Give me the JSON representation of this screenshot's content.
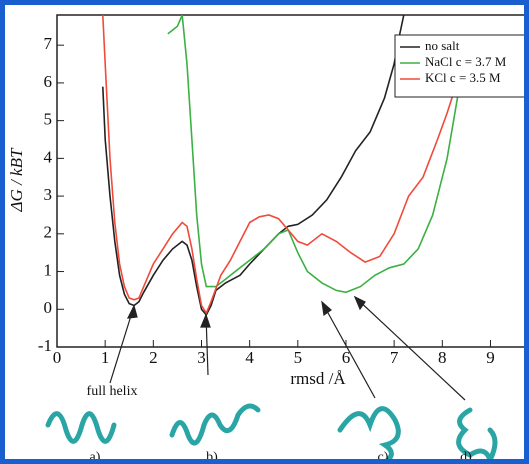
{
  "chart_data": {
    "type": "line",
    "xlabel": "rmsd /Å",
    "ylabel": "ΔG / kBT",
    "xlim": [
      0,
      9.8
    ],
    "ylim": [
      -1,
      7.8
    ],
    "xticks": [
      0,
      1,
      2,
      3,
      4,
      5,
      6,
      7,
      8,
      9
    ],
    "yticks": [
      -1,
      0,
      1,
      2,
      3,
      4,
      5,
      6,
      7
    ],
    "legend": "upper right",
    "annotations": [
      "full helix",
      "a)",
      "b)",
      "c)",
      "d)"
    ],
    "series": [
      {
        "name": "no salt",
        "color": "#222222",
        "x": [
          0.95,
          1.0,
          1.1,
          1.2,
          1.3,
          1.4,
          1.5,
          1.6,
          1.7,
          1.8,
          2.0,
          2.2,
          2.4,
          2.6,
          2.7,
          2.8,
          2.9,
          3.0,
          3.1,
          3.2,
          3.3,
          3.5,
          3.8,
          4.0,
          4.3,
          4.6,
          4.8,
          5.0,
          5.3,
          5.6,
          5.9,
          6.2,
          6.5,
          6.8,
          7.0,
          7.1,
          7.2
        ],
        "values": [
          5.9,
          4.5,
          3.0,
          1.8,
          0.9,
          0.4,
          0.15,
          0.1,
          0.2,
          0.45,
          0.9,
          1.3,
          1.6,
          1.8,
          1.7,
          1.3,
          0.6,
          0.0,
          -0.15,
          0.1,
          0.5,
          0.7,
          0.9,
          1.2,
          1.6,
          2.0,
          2.2,
          2.25,
          2.5,
          2.9,
          3.5,
          4.2,
          4.7,
          5.6,
          6.5,
          7.2,
          7.8
        ]
      },
      {
        "name": "NaCl c = 3.7 M",
        "color": "#3cb043",
        "x": [
          2.3,
          2.5,
          2.6,
          2.7,
          2.8,
          2.9,
          3.0,
          3.1,
          3.3,
          3.5,
          3.8,
          4.0,
          4.3,
          4.6,
          4.8,
          5.0,
          5.2,
          5.5,
          5.8,
          6.0,
          6.3,
          6.6,
          6.9,
          7.2,
          7.5,
          7.8,
          8.1,
          8.3,
          8.5
        ],
        "values": [
          7.3,
          7.5,
          7.8,
          6.5,
          4.5,
          2.5,
          1.2,
          0.6,
          0.6,
          0.8,
          1.1,
          1.3,
          1.6,
          2.0,
          2.1,
          1.5,
          1.0,
          0.7,
          0.5,
          0.45,
          0.6,
          0.9,
          1.1,
          1.2,
          1.6,
          2.5,
          4.0,
          5.5,
          7.0
        ]
      },
      {
        "name": "KCl c = 3.5 M",
        "color": "#f04a3a",
        "x": [
          0.95,
          1.0,
          1.1,
          1.2,
          1.3,
          1.4,
          1.5,
          1.6,
          1.7,
          1.8,
          2.0,
          2.2,
          2.4,
          2.6,
          2.7,
          2.8,
          2.9,
          3.0,
          3.1,
          3.2,
          3.4,
          3.6,
          3.8,
          4.0,
          4.2,
          4.4,
          4.6,
          4.8,
          5.0,
          5.2,
          5.5,
          5.8,
          6.1,
          6.4,
          6.7,
          7.0,
          7.3,
          7.6,
          7.9,
          8.1,
          8.3
        ],
        "values": [
          7.8,
          6.5,
          4.0,
          2.3,
          1.2,
          0.6,
          0.3,
          0.25,
          0.3,
          0.6,
          1.2,
          1.6,
          2.0,
          2.3,
          2.2,
          1.6,
          0.8,
          0.1,
          -0.1,
          0.2,
          0.9,
          1.3,
          1.8,
          2.3,
          2.45,
          2.5,
          2.4,
          2.1,
          1.8,
          1.7,
          2.0,
          1.8,
          1.5,
          1.25,
          1.4,
          2.0,
          3.0,
          3.5,
          4.5,
          5.2,
          6.0
        ]
      }
    ]
  }
}
